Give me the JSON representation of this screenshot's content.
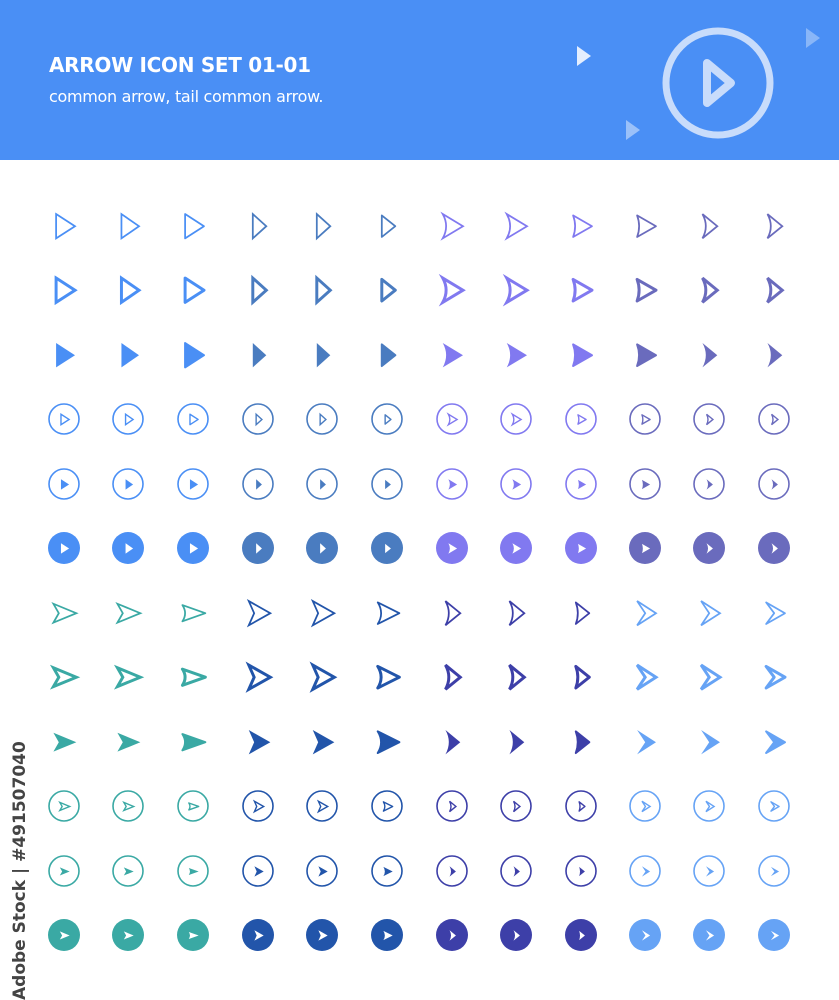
{
  "header": {
    "title": "ARROW ICON SET 01-01",
    "subtitle": "common arrow, tail common arrow.",
    "background": "#4a8ff5",
    "decor_icon": "play-circle-icon"
  },
  "watermark": {
    "side_text": "Adobe Stock | #491507040"
  },
  "icon_set": {
    "row_styles": [
      "outline-thin",
      "outline-bold",
      "filled",
      "circle-outline-arrow",
      "circle-filled-arrow",
      "solid-circle"
    ],
    "top_half": [
      {
        "shape": "triangle",
        "color": "#4a8ff5"
      },
      {
        "shape": "triangle-narrow",
        "color": "#4a8ff5"
      },
      {
        "shape": "triangle-rounded",
        "color": "#4a8ff5"
      },
      {
        "shape": "triangle-slim",
        "color": "#4a7cc0"
      },
      {
        "shape": "triangle-slim",
        "color": "#4a7cc0"
      },
      {
        "shape": "triangle-slim-rounded",
        "color": "#4a7cc0"
      },
      {
        "shape": "concave",
        "color": "#8179f0"
      },
      {
        "shape": "concave",
        "color": "#8179f0"
      },
      {
        "shape": "concave-rounded",
        "color": "#8179f0"
      },
      {
        "shape": "concave-rounded",
        "color": "#6a6bbd"
      },
      {
        "shape": "chevron-narrow",
        "color": "#6a6bbd"
      },
      {
        "shape": "chevron-narrow",
        "color": "#6a6bbd"
      }
    ],
    "bottom_half": [
      {
        "shape": "notch",
        "color": "#3aa9a4"
      },
      {
        "shape": "notch",
        "color": "#3aa9a4"
      },
      {
        "shape": "notch-rounded",
        "color": "#3aa9a4"
      },
      {
        "shape": "notch-wide",
        "color": "#2255aa"
      },
      {
        "shape": "notch-wide",
        "color": "#2255aa"
      },
      {
        "shape": "notch-wide-rounded",
        "color": "#2255aa"
      },
      {
        "shape": "chevron-narrow",
        "color": "#3d3fa8"
      },
      {
        "shape": "chevron-narrow",
        "color": "#3d3fa8"
      },
      {
        "shape": "chevron-narrow-rounded",
        "color": "#3d3fa8"
      },
      {
        "shape": "chevron",
        "color": "#66a3f5"
      },
      {
        "shape": "chevron",
        "color": "#66a3f5"
      },
      {
        "shape": "chevron-rounded",
        "color": "#66a3f5"
      }
    ]
  }
}
